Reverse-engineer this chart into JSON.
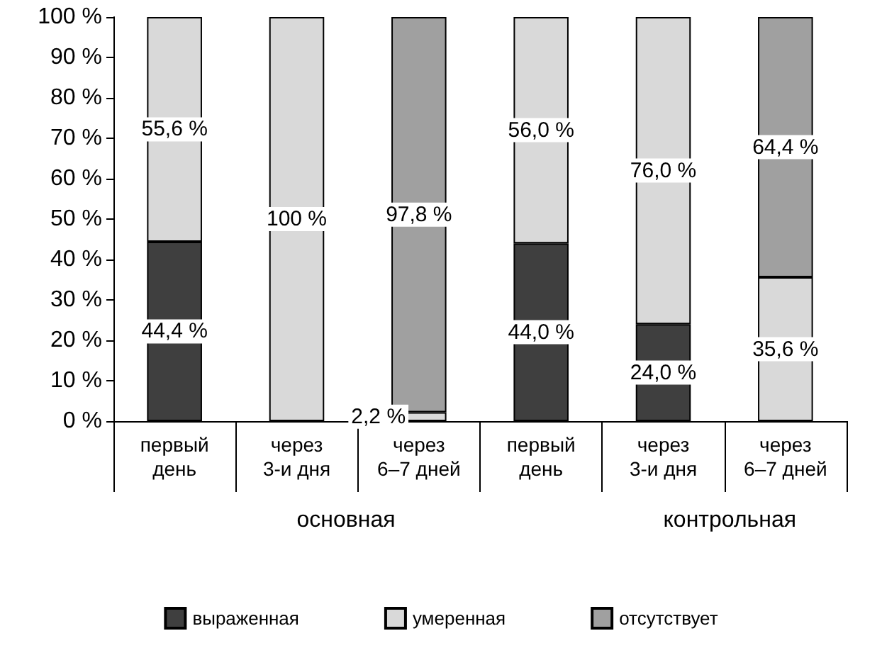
{
  "chart_data": {
    "type": "bar",
    "stacked": true,
    "categories": [
      "первый\nдень",
      "через\n3-и дня",
      "через\n6–7 дней",
      "первый\nдень",
      "через\n3-и дня",
      "через\n6–7 дней"
    ],
    "series": [
      {
        "name": "выраженная",
        "color": "#3f3f3f",
        "values": [
          44.4,
          null,
          null,
          44.0,
          24.0,
          null
        ],
        "value_labels": [
          "44,4 %",
          null,
          null,
          "44,0 %",
          "24,0 %",
          null
        ]
      },
      {
        "name": "умеренная",
        "color": "#d9d9d9",
        "values": [
          55.6,
          100,
          2.2,
          56.0,
          76.0,
          35.6
        ],
        "value_labels": [
          "55,6 %",
          "100 %",
          "2,2 %",
          "56,0 %",
          "76,0 %",
          "35,6 %"
        ]
      },
      {
        "name": "отсутствует",
        "color": "#a0a0a0",
        "values": [
          null,
          null,
          97.8,
          null,
          null,
          64.4
        ],
        "value_labels": [
          null,
          null,
          "97,8 %",
          null,
          null,
          "64,4 %"
        ]
      }
    ],
    "ylim": [
      0,
      100
    ],
    "yticks": [
      {
        "value": 0,
        "label": "0 %"
      },
      {
        "value": 10,
        "label": "10 %"
      },
      {
        "value": 20,
        "label": "20 %"
      },
      {
        "value": 30,
        "label": "30 %"
      },
      {
        "value": 40,
        "label": "40 %"
      },
      {
        "value": 50,
        "label": "50 %"
      },
      {
        "value": 60,
        "label": "60 %"
      },
      {
        "value": 70,
        "label": "70 %"
      },
      {
        "value": 80,
        "label": "80 %"
      },
      {
        "value": 90,
        "label": "90 %"
      },
      {
        "value": 100,
        "label": "100 %"
      }
    ],
    "annotations": [
      "основная",
      "контрольная"
    ],
    "grid": false,
    "legend": "bottom"
  }
}
